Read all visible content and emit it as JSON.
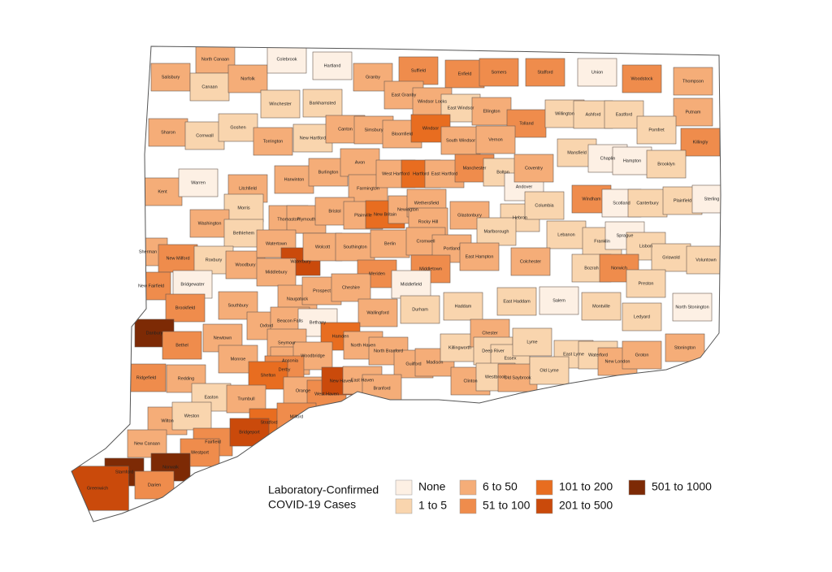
{
  "map": {
    "legend": {
      "title": [
        "Laboratory-Confirmed",
        "COVID-19 Cases"
      ],
      "items": [
        {
          "label": "None",
          "color": "#fdf0e4"
        },
        {
          "label": "1 to 5",
          "color": "#f9d5ae"
        },
        {
          "label": "6 to 50",
          "color": "#f5ad78"
        },
        {
          "label": "51 to 100",
          "color": "#ef8c4c"
        },
        {
          "label": "101 to 200",
          "color": "#e86d20"
        },
        {
          "label": "201 to 500",
          "color": "#ca4a0b"
        },
        {
          "label": "501 to 1000",
          "color": "#7d2a05"
        }
      ]
    },
    "towns": [
      {
        "name": "Salisbury",
        "category": 2
      },
      {
        "name": "North Canaan",
        "category": 2
      },
      {
        "name": "Canaan",
        "category": 1
      },
      {
        "name": "Norfolk",
        "category": 2
      },
      {
        "name": "Colebrook",
        "category": 0
      },
      {
        "name": "Hartland",
        "category": 0
      },
      {
        "name": "Granby",
        "category": 2
      },
      {
        "name": "Suffield",
        "category": 3
      },
      {
        "name": "Enfield",
        "category": 3
      },
      {
        "name": "Somers",
        "category": 3
      },
      {
        "name": "Stafford",
        "category": 3
      },
      {
        "name": "Union",
        "category": 0
      },
      {
        "name": "Woodstock",
        "category": 3
      },
      {
        "name": "Thompson",
        "category": 2
      },
      {
        "name": "Winchester",
        "category": 1
      },
      {
        "name": "Barkhamsted",
        "category": 1
      },
      {
        "name": "East Granby",
        "category": 2
      },
      {
        "name": "Windsor Locks",
        "category": 2
      },
      {
        "name": "East Windsor",
        "category": 1
      },
      {
        "name": "Ellington",
        "category": 2
      },
      {
        "name": "Tolland",
        "category": 3
      },
      {
        "name": "Willington",
        "category": 1
      },
      {
        "name": "Ashford",
        "category": 1
      },
      {
        "name": "Eastford",
        "category": 1
      },
      {
        "name": "Putnam",
        "category": 2
      },
      {
        "name": "Pomfret",
        "category": 1
      },
      {
        "name": "Killingly",
        "category": 3
      },
      {
        "name": "Sharon",
        "category": 2
      },
      {
        "name": "Cornwall",
        "category": 1
      },
      {
        "name": "Goshen",
        "category": 1
      },
      {
        "name": "Torrington",
        "category": 2
      },
      {
        "name": "New Hartford",
        "category": 1
      },
      {
        "name": "Canton",
        "category": 2
      },
      {
        "name": "Simsbury",
        "category": 2
      },
      {
        "name": "Bloomfield",
        "category": 2
      },
      {
        "name": "Windsor",
        "category": 4
      },
      {
        "name": "South Windsor",
        "category": 2
      },
      {
        "name": "Vernon",
        "category": 2
      },
      {
        "name": "Mansfield",
        "category": 1
      },
      {
        "name": "Chaplin",
        "category": 0
      },
      {
        "name": "Hampton",
        "category": 0
      },
      {
        "name": "Brooklyn",
        "category": 1
      },
      {
        "name": "Kent",
        "category": 2
      },
      {
        "name": "Warren",
        "category": 0
      },
      {
        "name": "Litchfield",
        "category": 2
      },
      {
        "name": "Harwinton",
        "category": 2
      },
      {
        "name": "Burlington",
        "category": 2
      },
      {
        "name": "Avon",
        "category": 2
      },
      {
        "name": "Farmington",
        "category": 2
      },
      {
        "name": "West Hartford",
        "category": 2
      },
      {
        "name": "Hartford",
        "category": 4
      },
      {
        "name": "East Hartford",
        "category": 2
      },
      {
        "name": "Manchester",
        "category": 3
      },
      {
        "name": "Bolton",
        "category": 1
      },
      {
        "name": "Andover",
        "category": 0
      },
      {
        "name": "Coventry",
        "category": 2
      },
      {
        "name": "Windham",
        "category": 3
      },
      {
        "name": "Scotland",
        "category": 0
      },
      {
        "name": "Canterbury",
        "category": 1
      },
      {
        "name": "Plainfield",
        "category": 1
      },
      {
        "name": "Sterling",
        "category": 0
      },
      {
        "name": "Morris",
        "category": 1
      },
      {
        "name": "Washington",
        "category": 2
      },
      {
        "name": "Bethlehem",
        "category": 1
      },
      {
        "name": "Thomaston",
        "category": 2
      },
      {
        "name": "Plymouth",
        "category": 2
      },
      {
        "name": "Bristol",
        "category": 2
      },
      {
        "name": "Plainville",
        "category": 2
      },
      {
        "name": "New Britain",
        "category": 4
      },
      {
        "name": "Newington",
        "category": 2
      },
      {
        "name": "Wethersfield",
        "category": 2
      },
      {
        "name": "Rocky Hill",
        "category": 2
      },
      {
        "name": "Glastonbury",
        "category": 2
      },
      {
        "name": "Hebron",
        "category": 1
      },
      {
        "name": "Columbia",
        "category": 1
      },
      {
        "name": "Lebanon",
        "category": 1
      },
      {
        "name": "Franklin",
        "category": 1
      },
      {
        "name": "Sprague",
        "category": 0
      },
      {
        "name": "Lisbon",
        "category": 1
      },
      {
        "name": "Griswold",
        "category": 1
      },
      {
        "name": "Voluntown",
        "category": 1
      },
      {
        "name": "Sherman",
        "category": 2
      },
      {
        "name": "New Milford",
        "category": 3
      },
      {
        "name": "Roxbury",
        "category": 1
      },
      {
        "name": "Woodbury",
        "category": 2
      },
      {
        "name": "Watertown",
        "category": 2
      },
      {
        "name": "Waterbury",
        "category": 5
      },
      {
        "name": "Wolcott",
        "category": 2
      },
      {
        "name": "Southington",
        "category": 2
      },
      {
        "name": "Berlin",
        "category": 2
      },
      {
        "name": "Cromwell",
        "category": 2
      },
      {
        "name": "Portland",
        "category": 2
      },
      {
        "name": "Marlborough",
        "category": 1
      },
      {
        "name": "East Hampton",
        "category": 2
      },
      {
        "name": "Colchester",
        "category": 2
      },
      {
        "name": "Bozrah",
        "category": 1
      },
      {
        "name": "Norwich",
        "category": 3
      },
      {
        "name": "Preston",
        "category": 1
      },
      {
        "name": "Bridgewater",
        "category": 0
      },
      {
        "name": "Middlebury",
        "category": 2
      },
      {
        "name": "Meriden",
        "category": 3
      },
      {
        "name": "Middletown",
        "category": 3
      },
      {
        "name": "Middlefield",
        "category": 0
      },
      {
        "name": "New Fairfield",
        "category": 3
      },
      {
        "name": "Brookfield",
        "category": 3
      },
      {
        "name": "Southbury",
        "category": 2
      },
      {
        "name": "Naugatuck",
        "category": 2
      },
      {
        "name": "Prospect",
        "category": 2
      },
      {
        "name": "Cheshire",
        "category": 2
      },
      {
        "name": "Wallingford",
        "category": 2
      },
      {
        "name": "Durham",
        "category": 1
      },
      {
        "name": "Haddam",
        "category": 1
      },
      {
        "name": "East Haddam",
        "category": 1
      },
      {
        "name": "Salem",
        "category": 0
      },
      {
        "name": "Montville",
        "category": 1
      },
      {
        "name": "Ledyard",
        "category": 1
      },
      {
        "name": "North Stonington",
        "category": 0
      },
      {
        "name": "Danbury",
        "category": 6
      },
      {
        "name": "Bethel",
        "category": 3
      },
      {
        "name": "Newtown",
        "category": 2
      },
      {
        "name": "Oxford",
        "category": 2
      },
      {
        "name": "Beacon Falls",
        "category": 2
      },
      {
        "name": "Bethany",
        "category": 0
      },
      {
        "name": "Hamden",
        "category": 4
      },
      {
        "name": "North Haven",
        "category": 2
      },
      {
        "name": "Seymour",
        "category": 2
      },
      {
        "name": "Ansonia",
        "category": 2
      },
      {
        "name": "Woodbridge",
        "category": 2
      },
      {
        "name": "Derby",
        "category": 3
      },
      {
        "name": "Monroe",
        "category": 2
      },
      {
        "name": "North Branford",
        "category": 2
      },
      {
        "name": "Guilford",
        "category": 2
      },
      {
        "name": "Madison",
        "category": 2
      },
      {
        "name": "Killingworth",
        "category": 1
      },
      {
        "name": "Chester",
        "category": 2
      },
      {
        "name": "Deep River",
        "category": 1
      },
      {
        "name": "Essex",
        "category": 1
      },
      {
        "name": "Lyme",
        "category": 1
      },
      {
        "name": "East Lyme",
        "category": 1
      },
      {
        "name": "Waterford",
        "category": 1
      },
      {
        "name": "New London",
        "category": 2
      },
      {
        "name": "Groton",
        "category": 2
      },
      {
        "name": "Stonington",
        "category": 2
      },
      {
        "name": "Ridgefield",
        "category": 3
      },
      {
        "name": "Redding",
        "category": 2
      },
      {
        "name": "Shelton",
        "category": 4
      },
      {
        "name": "Orange",
        "category": 2
      },
      {
        "name": "West Haven",
        "category": 3
      },
      {
        "name": "New Haven",
        "category": 5
      },
      {
        "name": "East Haven",
        "category": 2
      },
      {
        "name": "Branford",
        "category": 2
      },
      {
        "name": "Clinton",
        "category": 2
      },
      {
        "name": "Westbrook",
        "category": 1
      },
      {
        "name": "Old Saybrook",
        "category": 2
      },
      {
        "name": "Old Lyme",
        "category": 1
      },
      {
        "name": "Easton",
        "category": 1
      },
      {
        "name": "Trumbull",
        "category": 2
      },
      {
        "name": "Stratford",
        "category": 4
      },
      {
        "name": "Milford",
        "category": 3
      },
      {
        "name": "Wilton",
        "category": 2
      },
      {
        "name": "Weston",
        "category": 1
      },
      {
        "name": "Fairfield",
        "category": 3
      },
      {
        "name": "Bridgeport",
        "category": 5
      },
      {
        "name": "New Canaan",
        "category": 2
      },
      {
        "name": "Westport",
        "category": 3
      },
      {
        "name": "Stamford",
        "category": 6
      },
      {
        "name": "Norwalk",
        "category": 6
      },
      {
        "name": "Darien",
        "category": 3
      },
      {
        "name": "Greenwich",
        "category": 5
      }
    ]
  }
}
